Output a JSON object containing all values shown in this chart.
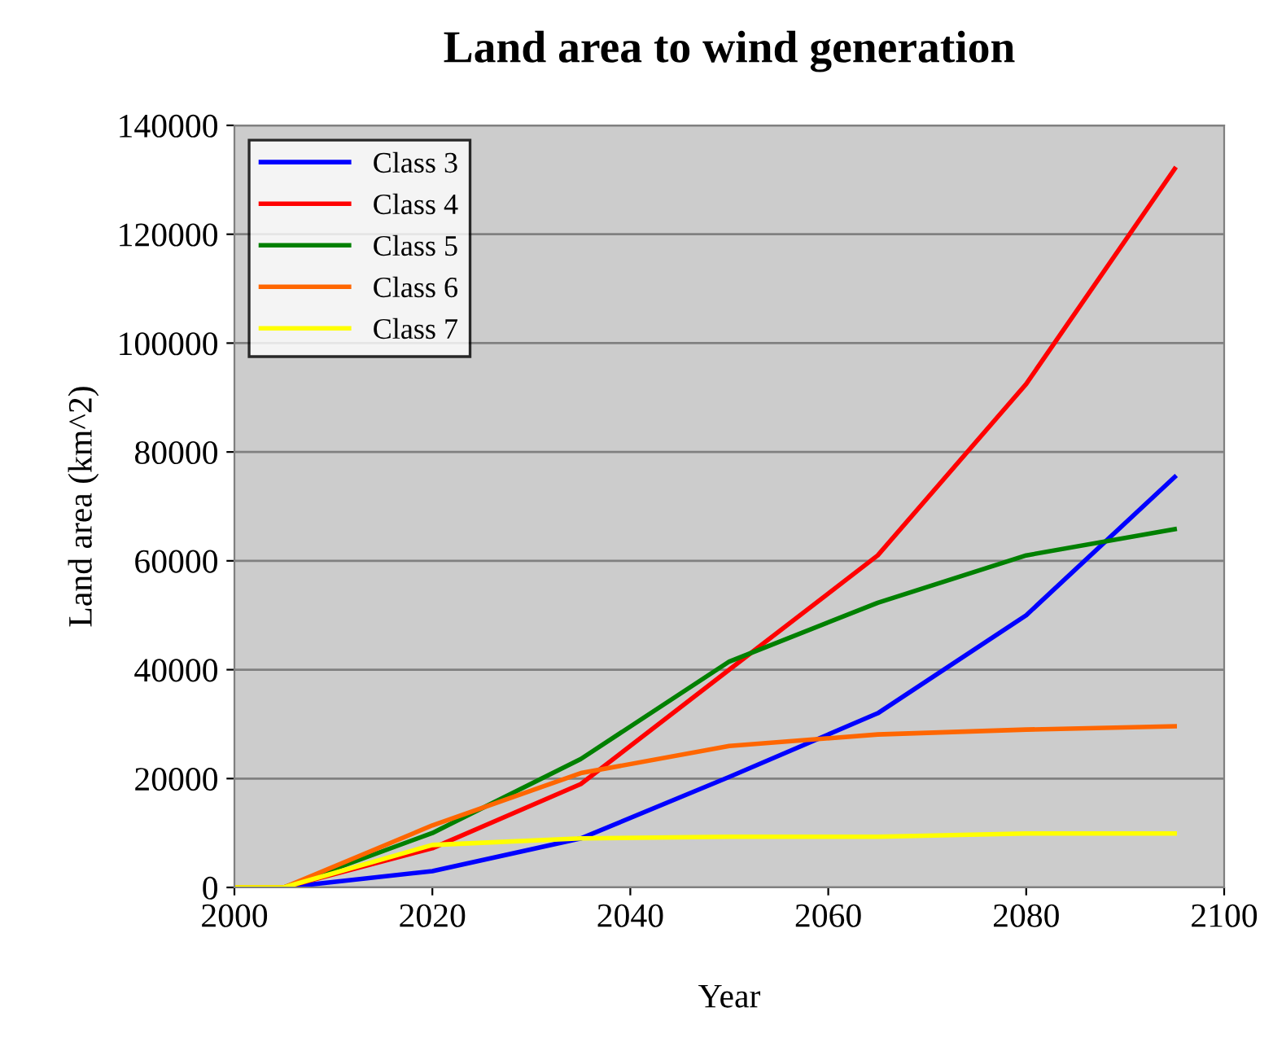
{
  "chart_data": {
    "type": "line",
    "title": "Land area to wind generation",
    "xlabel": "Year",
    "ylabel": "Land area (km^2)",
    "x": [
      2000,
      2005,
      2020,
      2035,
      2050,
      2065,
      2080,
      2095
    ],
    "series": [
      {
        "name": "Class 3",
        "color": "#0000ff",
        "values": [
          0,
          0,
          3000,
          9000,
          20300,
          32000,
          50000,
          75400
        ]
      },
      {
        "name": "Class 4",
        "color": "#ff0000",
        "values": [
          0,
          0,
          7200,
          19000,
          40000,
          61000,
          92500,
          132000
        ]
      },
      {
        "name": "Class 5",
        "color": "#008000",
        "values": [
          0,
          0,
          10000,
          23600,
          41500,
          52300,
          61000,
          65800
        ]
      },
      {
        "name": "Class 6",
        "color": "#ff6600",
        "values": [
          0,
          0,
          11400,
          21000,
          26000,
          28100,
          29000,
          29600
        ]
      },
      {
        "name": "Class 7",
        "color": "#ffff00",
        "values": [
          0,
          0,
          7800,
          9000,
          9300,
          9300,
          9900,
          9900
        ]
      }
    ],
    "xlim": [
      2000,
      2100
    ],
    "xticks": [
      2000,
      2020,
      2040,
      2060,
      2080,
      2100
    ],
    "ylim": [
      0,
      140000
    ],
    "yticks": [
      0,
      20000,
      40000,
      60000,
      80000,
      100000,
      120000,
      140000
    ],
    "grid": "y",
    "legend": "top left",
    "marker": "none",
    "line_style": "solid"
  }
}
